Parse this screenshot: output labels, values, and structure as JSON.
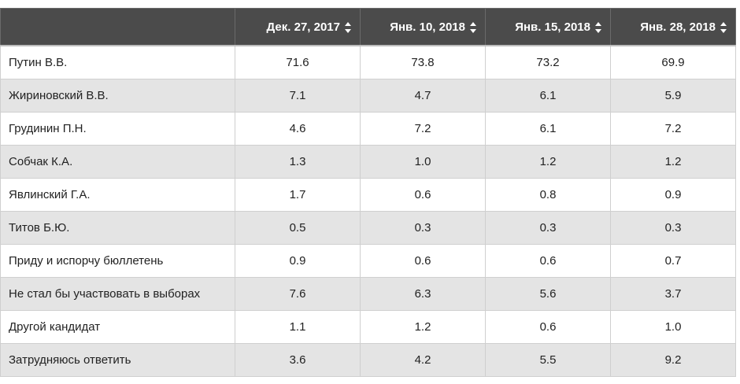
{
  "table": {
    "columns": [
      {
        "label": "Дек. 27, 2017",
        "sort_icon": "sort-icon"
      },
      {
        "label": "Янв. 10, 2018",
        "sort_icon": "sort-icon"
      },
      {
        "label": "Янв. 15, 2018",
        "sort_icon": "sort-icon"
      },
      {
        "label": "Янв. 28, 2018",
        "sort_icon": "sort-icon"
      }
    ],
    "rows": [
      {
        "name": "Путин В.В.",
        "values": [
          "71.6",
          "73.8",
          "73.2",
          "69.9"
        ]
      },
      {
        "name": "Жириновский В.В.",
        "values": [
          "7.1",
          "4.7",
          "6.1",
          "5.9"
        ]
      },
      {
        "name": "Грудинин П.Н.",
        "values": [
          "4.6",
          "7.2",
          "6.1",
          "7.2"
        ]
      },
      {
        "name": "Собчак К.А.",
        "values": [
          "1.3",
          "1.0",
          "1.2",
          "1.2"
        ]
      },
      {
        "name": "Явлинский Г.А.",
        "values": [
          "1.7",
          "0.6",
          "0.8",
          "0.9"
        ]
      },
      {
        "name": "Титов Б.Ю.",
        "values": [
          "0.5",
          "0.3",
          "0.3",
          "0.3"
        ]
      },
      {
        "name": "Приду и испорчу бюллетень",
        "values": [
          "0.9",
          "0.6",
          "0.6",
          "0.7"
        ]
      },
      {
        "name": "Не стал бы участвовать в выборах",
        "values": [
          "7.6",
          "6.3",
          "5.6",
          "3.7"
        ]
      },
      {
        "name": "Другой кандидат",
        "values": [
          "1.1",
          "1.2",
          "0.6",
          "1.0"
        ]
      },
      {
        "name": "Затрудняюсь ответить",
        "values": [
          "3.6",
          "4.2",
          "5.5",
          "9.2"
        ]
      }
    ]
  },
  "colors": {
    "header_bg": "#4b4b4b",
    "header_text": "#ffffff",
    "row_alt_bg": "#e4e4e4",
    "row_bg": "#ffffff"
  }
}
